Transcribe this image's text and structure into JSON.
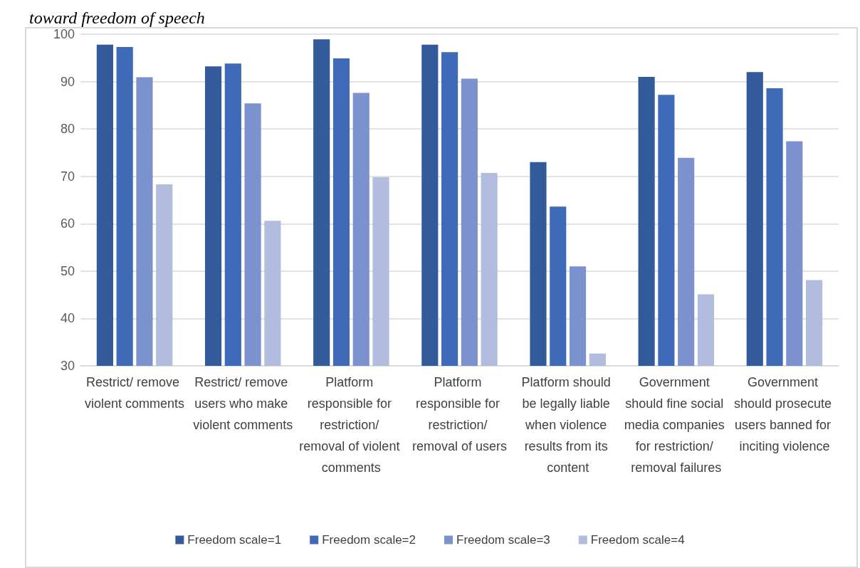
{
  "chart_data": {
    "type": "bar",
    "title": "toward freedom of speech",
    "categories": [
      "Restrict/ remove violent comments",
      "Restrict/ remove users who make violent comments",
      "Platform responsible for restriction/ removal of violent comments",
      "Platform responsible for restriction/ removal of users",
      "Platform should be legally liable when violence results from its content",
      "Government should fine social media companies for restriction/ removal failures",
      "Government should prosecute users banned for inciting violence"
    ],
    "series": [
      {
        "name": "Freedom scale=1",
        "color": "#335a9a",
        "values": [
          97.8,
          93.2,
          98.9,
          97.8,
          73.0,
          91.0,
          92.0
        ]
      },
      {
        "name": "Freedom scale=2",
        "color": "#3f6ab8",
        "values": [
          97.3,
          93.8,
          94.9,
          96.2,
          63.6,
          87.2,
          88.6
        ]
      },
      {
        "name": "Freedom scale=3",
        "color": "#7b92ce",
        "values": [
          90.9,
          85.4,
          87.6,
          90.6,
          51.0,
          73.9,
          77.4
        ]
      },
      {
        "name": "Freedom scale=4",
        "color": "#b2bcde",
        "values": [
          68.3,
          60.6,
          69.8,
          70.7,
          32.6,
          45.1,
          48.1
        ]
      }
    ],
    "ylim": [
      30,
      100
    ],
    "yticks": [
      30,
      40,
      50,
      60,
      70,
      80,
      90,
      100
    ],
    "grid": "y",
    "legend": "bottom"
  }
}
